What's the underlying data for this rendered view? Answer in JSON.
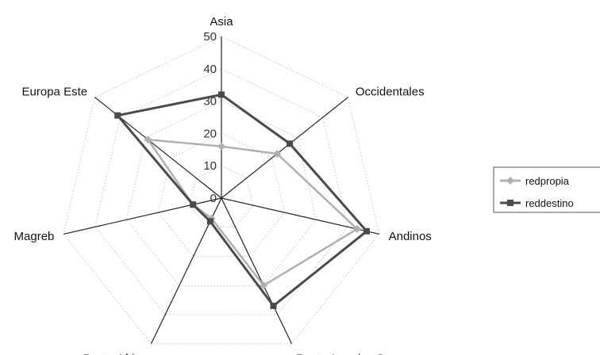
{
  "chart_data": {
    "type": "radar",
    "title": "",
    "categories": [
      "Asia",
      "Occidentales",
      "Andinos",
      "Resto America Sur",
      "Resto Africa",
      "Magreb",
      "Europa Este"
    ],
    "rlim": [
      0,
      50
    ],
    "rticks": [
      0,
      10,
      20,
      30,
      40,
      50
    ],
    "grid": true,
    "legend_position": "right",
    "series": [
      {
        "name": "redpropia",
        "values": [
          16,
          22,
          43,
          30,
          7,
          9,
          29
        ],
        "color": "#b0b0b0",
        "marker": "diamond"
      },
      {
        "name": "reddestino",
        "values": [
          32,
          27,
          46,
          37,
          8,
          9,
          41
        ],
        "color": "#4a4a4a",
        "marker": "square"
      }
    ]
  }
}
